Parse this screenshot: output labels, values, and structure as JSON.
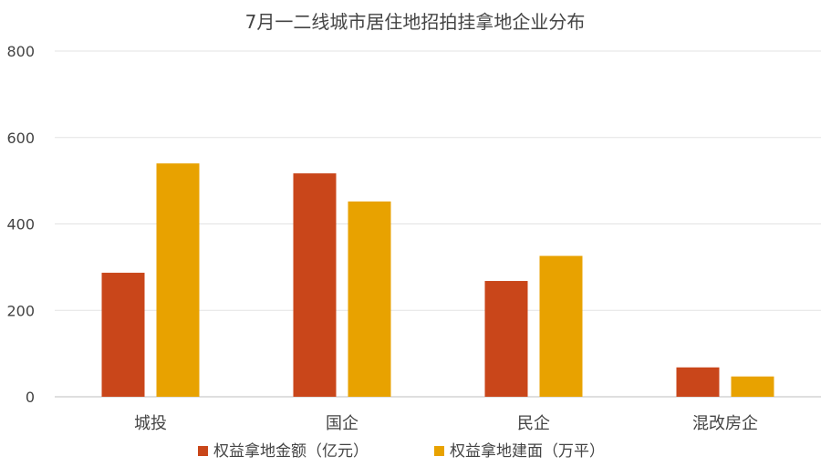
{
  "chart_data": {
    "type": "bar",
    "title": "7月一二线城市居住地招拍挂拿地企业分布",
    "categories": [
      "城投",
      "国企",
      "民企",
      "混改房企"
    ],
    "series": [
      {
        "name": "权益拿地金额（亿元）",
        "values": [
          287,
          517,
          268,
          68
        ]
      },
      {
        "name": "权益拿地建面（万平）",
        "values": [
          540,
          452,
          326,
          47
        ]
      }
    ],
    "ylim": [
      0,
      800
    ],
    "yticks": [
      "0",
      "200",
      "400",
      "600",
      "800"
    ],
    "grid": true,
    "legend_position": "bottom",
    "colors": [
      "#C9461A",
      "#E8A200"
    ],
    "xlabel": "",
    "ylabel": ""
  }
}
